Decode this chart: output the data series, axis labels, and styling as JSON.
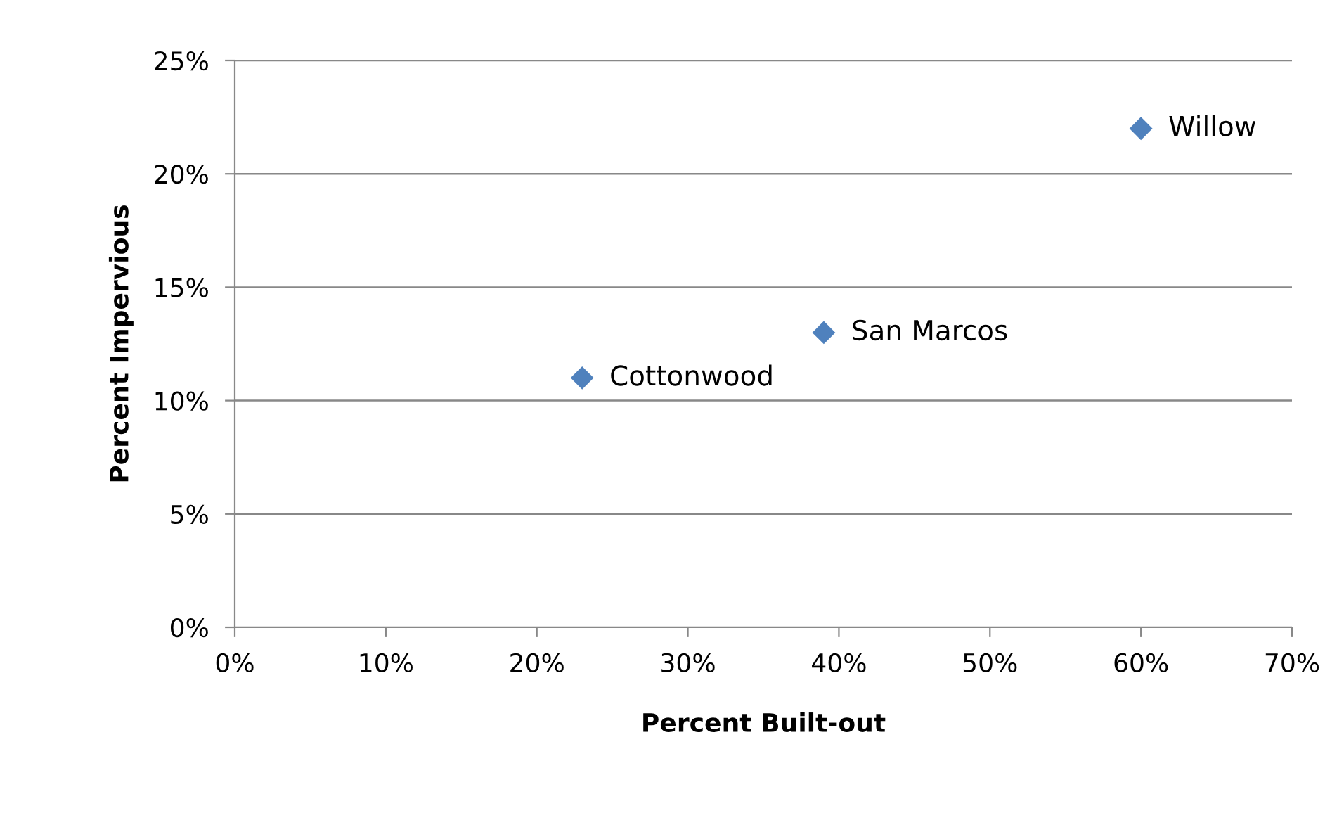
{
  "chart_data": {
    "type": "scatter",
    "xlabel": "Percent Built-out",
    "ylabel": "Percent Impervious",
    "x": [
      23,
      39,
      60
    ],
    "values": [
      11,
      13,
      22
    ],
    "color": "#4f81bd",
    "marker": "diamond",
    "xlim": [
      0,
      70
    ],
    "ylim": [
      0,
      25
    ],
    "xticks": [
      {
        "value": 0,
        "label": "0%"
      },
      {
        "value": 10,
        "label": "10%"
      },
      {
        "value": 20,
        "label": "20%"
      },
      {
        "value": 30,
        "label": "30%"
      },
      {
        "value": 40,
        "label": "40%"
      },
      {
        "value": 50,
        "label": "50%"
      },
      {
        "value": 60,
        "label": "60%"
      },
      {
        "value": 70,
        "label": "70%"
      }
    ],
    "yticks": [
      {
        "value": 0,
        "label": "0%"
      },
      {
        "value": 5,
        "label": "5%"
      },
      {
        "value": 10,
        "label": "10%"
      },
      {
        "value": 15,
        "label": "15%"
      },
      {
        "value": 20,
        "label": "20%"
      },
      {
        "value": 25,
        "label": "25%"
      }
    ],
    "grid": "y",
    "legend": false,
    "annotations": [
      {
        "text": "Cottonwood",
        "x": 23,
        "y": 11
      },
      {
        "text": "San Marcos",
        "x": 39,
        "y": 13
      },
      {
        "text": "Willow",
        "x": 60,
        "y": 22
      }
    ]
  }
}
